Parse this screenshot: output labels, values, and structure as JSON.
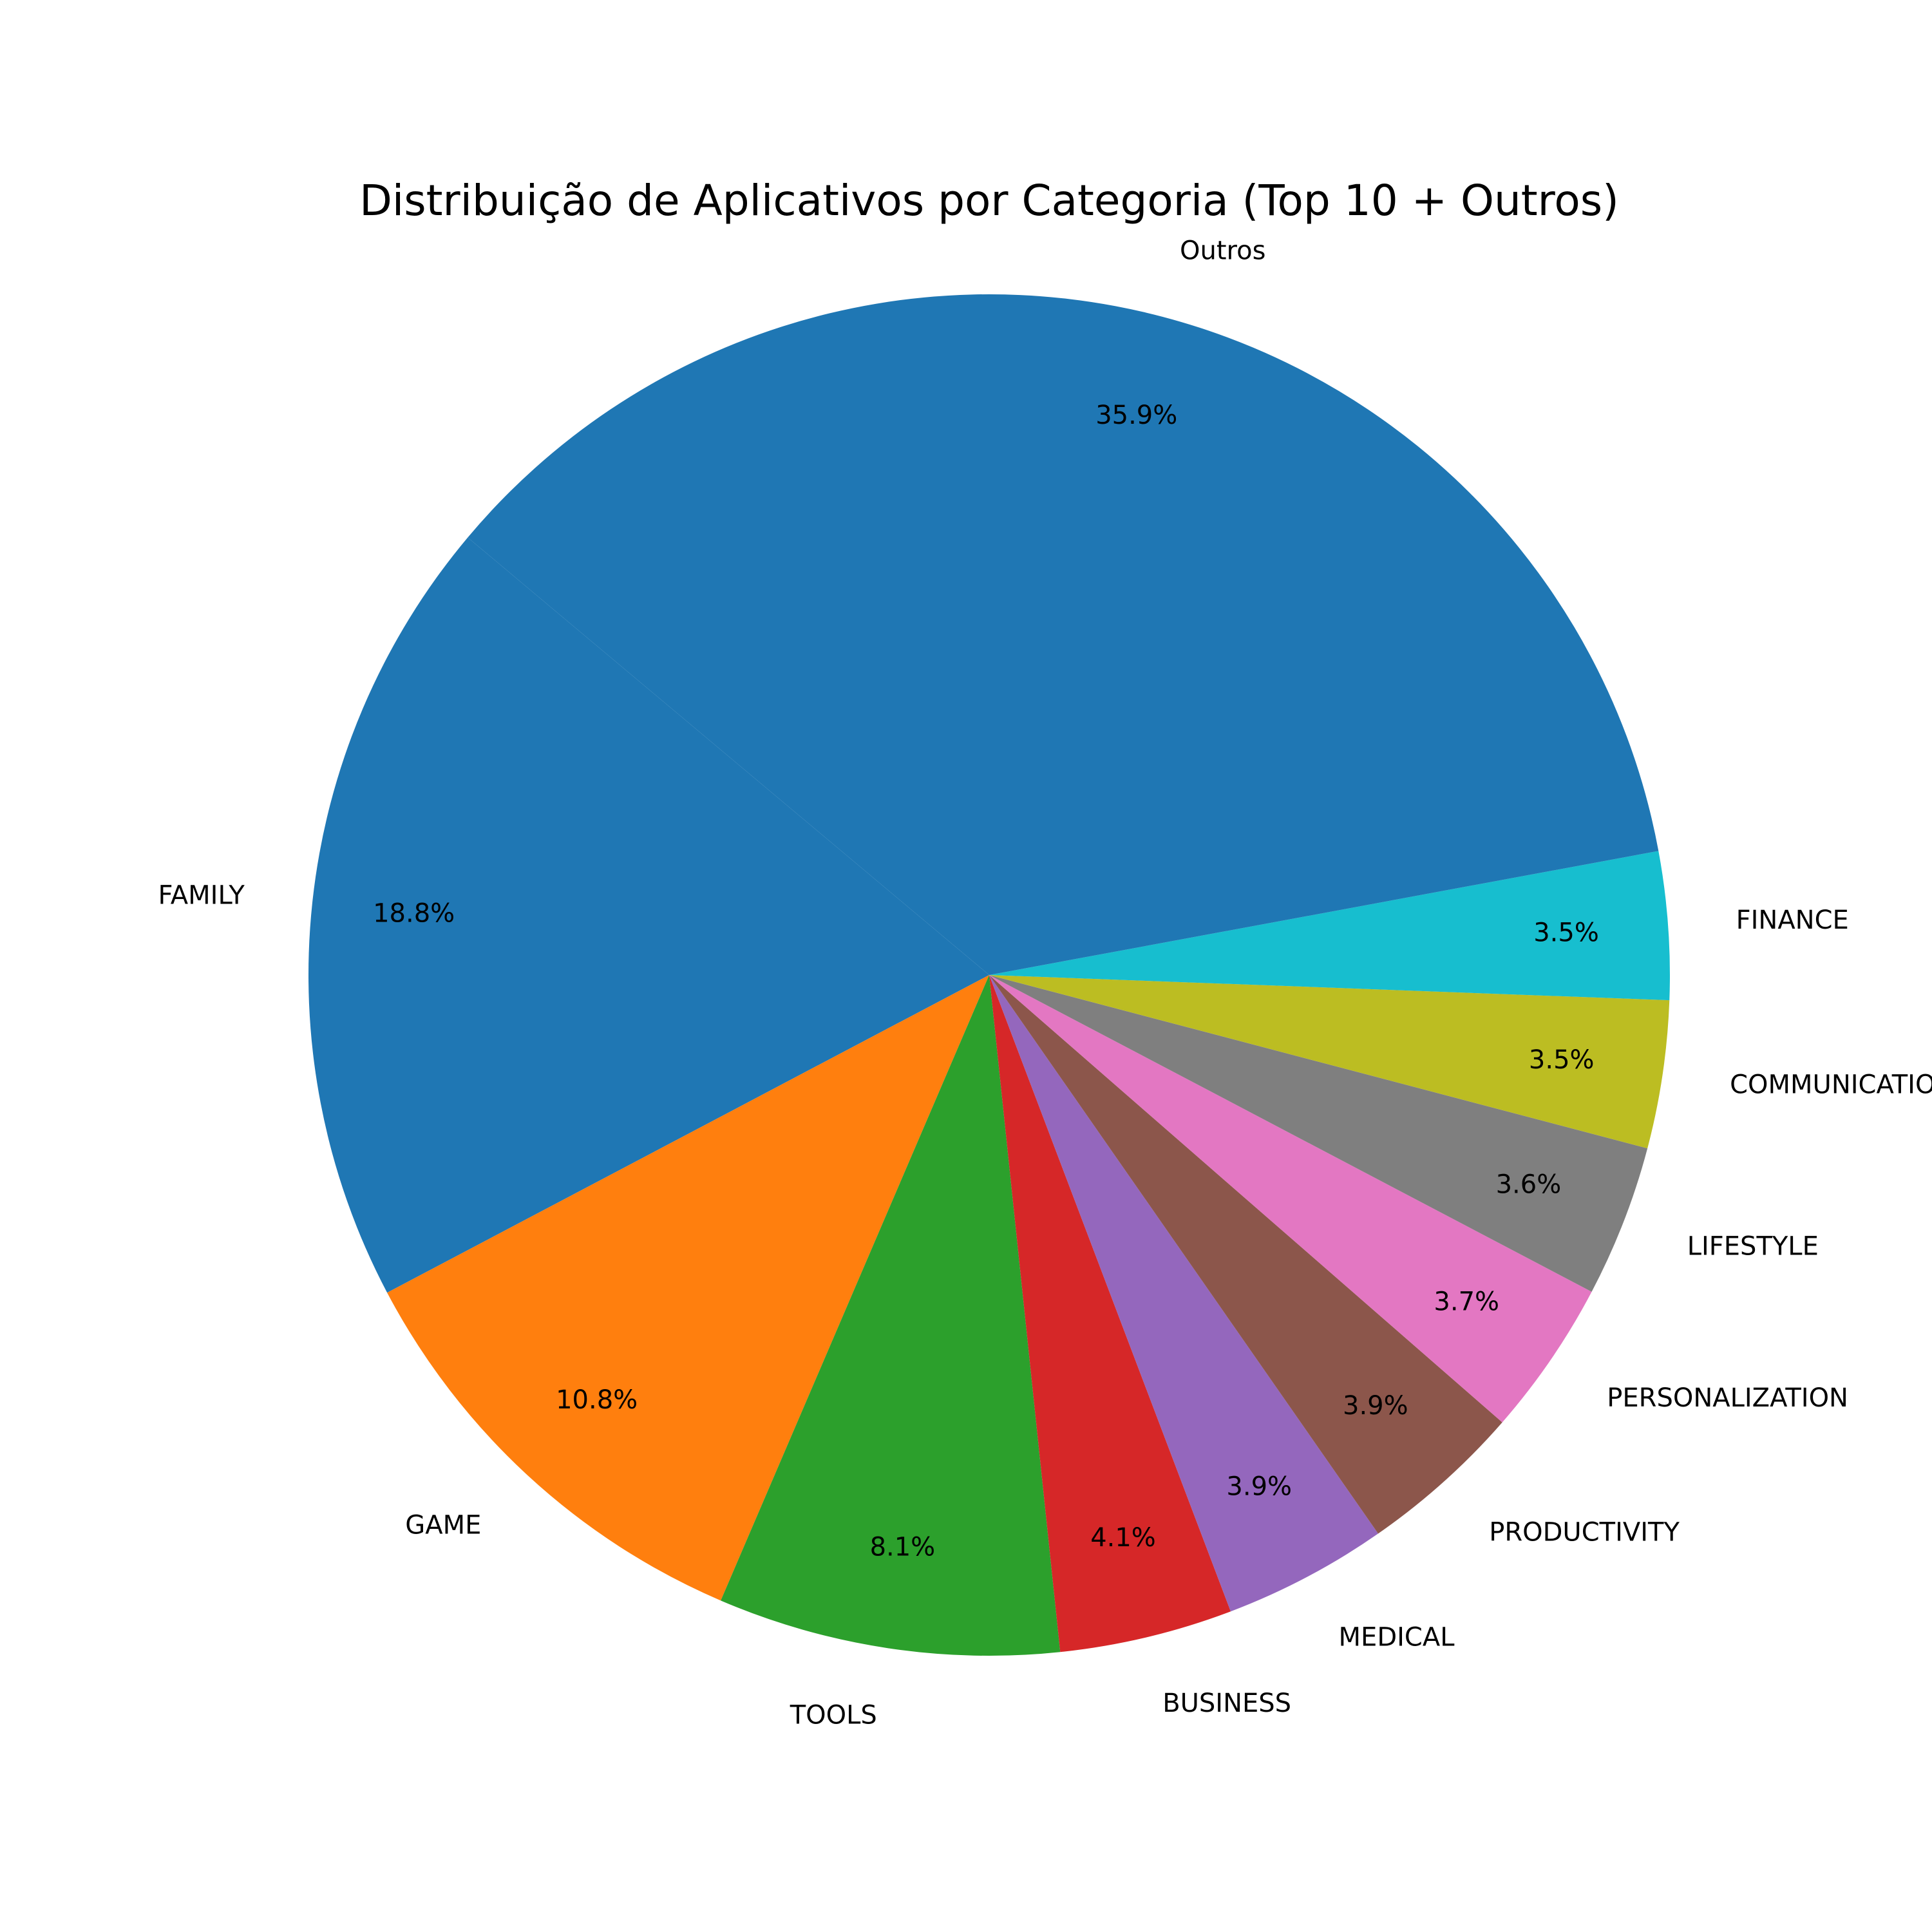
{
  "chart_data": {
    "type": "pie",
    "title": "Distribuição de Aplicativos por Categoria (Top 10 + Outros)",
    "start_angle_deg": 140,
    "direction": "counterclockwise",
    "slices": [
      {
        "label": "FAMILY",
        "value": 18.8,
        "pct_label": "18.8%",
        "color": "#1f77b4"
      },
      {
        "label": "GAME",
        "value": 10.8,
        "pct_label": "10.8%",
        "color": "#ff7f0e"
      },
      {
        "label": "TOOLS",
        "value": 8.1,
        "pct_label": "8.1%",
        "color": "#2ca02c"
      },
      {
        "label": "BUSINESS",
        "value": 4.1,
        "pct_label": "4.1%",
        "color": "#d62728"
      },
      {
        "label": "MEDICAL",
        "value": 3.9,
        "pct_label": "3.9%",
        "color": "#9467bd"
      },
      {
        "label": "PRODUCTIVITY",
        "value": 3.9,
        "pct_label": "3.9%",
        "color": "#8c564b"
      },
      {
        "label": "PERSONALIZATION",
        "value": 3.7,
        "pct_label": "3.7%",
        "color": "#e377c2"
      },
      {
        "label": "LIFESTYLE",
        "value": 3.6,
        "pct_label": "3.6%",
        "color": "#7f7f7f"
      },
      {
        "label": "COMMUNICATION",
        "value": 3.5,
        "pct_label": "3.5%",
        "color": "#bcbd22"
      },
      {
        "label": "FINANCE",
        "value": 3.5,
        "pct_label": "3.5%",
        "color": "#17becf"
      },
      {
        "label": "Outros",
        "value": 35.9,
        "pct_label": "35.9%",
        "color": "#1f77b4"
      }
    ]
  }
}
